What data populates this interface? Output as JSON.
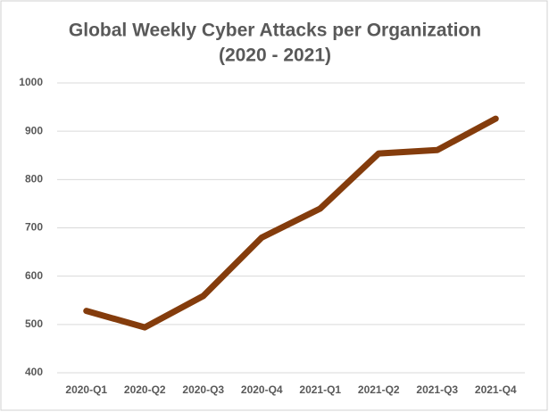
{
  "chart_data": {
    "type": "line",
    "title": "Global Weekly Cyber Attacks per Organization",
    "subtitle": "(2020 - 2021)",
    "categories": [
      "2020-Q1",
      "2020-Q2",
      "2020-Q3",
      "2020-Q4",
      "2021-Q1",
      "2021-Q2",
      "2021-Q3",
      "2021-Q4"
    ],
    "values": [
      528,
      494,
      559,
      680,
      740,
      854,
      861,
      926
    ],
    "color": "#843c0c",
    "ylim": [
      400,
      1000
    ],
    "yticks": [
      400,
      500,
      600,
      700,
      800,
      900,
      1000
    ],
    "grid": true
  }
}
